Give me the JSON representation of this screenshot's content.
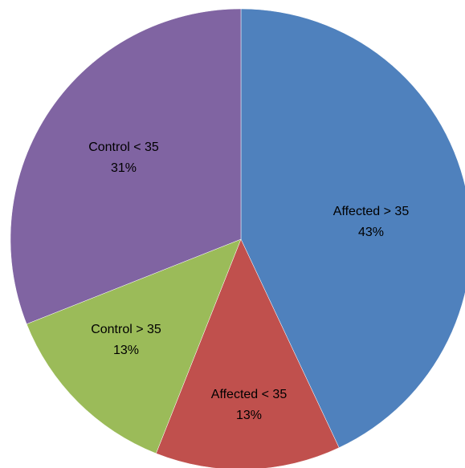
{
  "chart_data": {
    "type": "pie",
    "title": "",
    "categories": [
      "Affected > 35",
      "Affected < 35",
      "Control > 35",
      "Control < 35"
    ],
    "values": [
      43,
      13,
      13,
      31
    ],
    "value_labels": [
      "43%",
      "13%",
      "13%",
      "31%"
    ],
    "colors": [
      "#4f81bd",
      "#c0504d",
      "#9bbb59",
      "#8064a2"
    ],
    "legend": "none",
    "labels_inside": true
  }
}
